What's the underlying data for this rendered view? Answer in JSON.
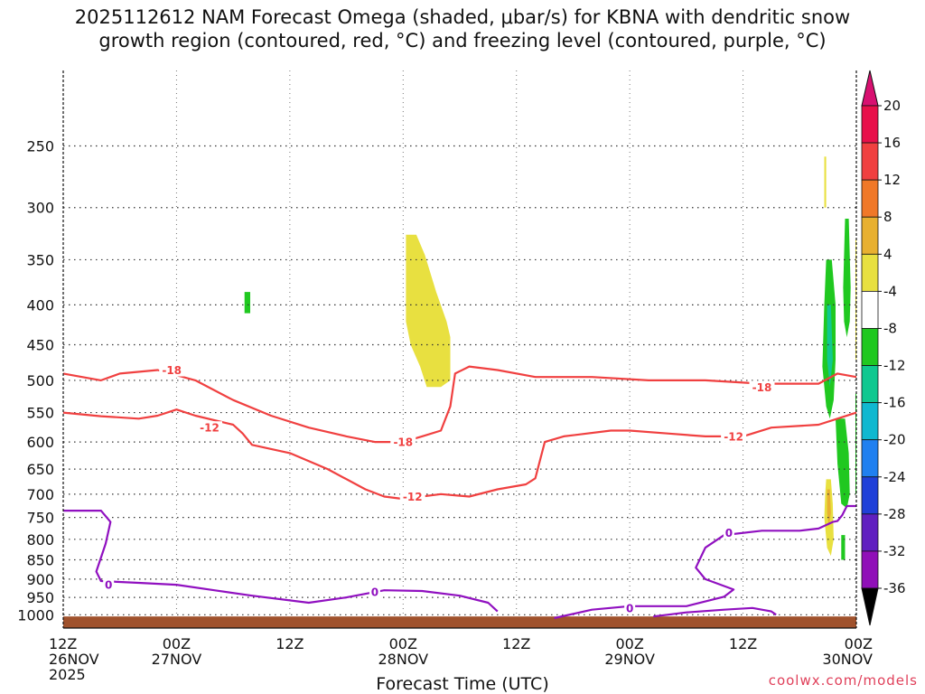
{
  "chart_data": {
    "type": "time-height section",
    "title_line1": "2025112612 NAM Forecast Omega (shaded, μbar/s) for KBNA with dendritic snow",
    "title_line2": "growth region (contoured, red, °C) and freezing level (contoured, purple, °C)",
    "xlabel": "Forecast Time (UTC)",
    "credit": "coolwx.com/models",
    "x_ticks": [
      {
        "hour": 0,
        "l1": "12Z",
        "l2": "26NOV",
        "l3": "2025"
      },
      {
        "hour": 12,
        "l1": "00Z",
        "l2": "27NOV",
        "l3": ""
      },
      {
        "hour": 24,
        "l1": "12Z",
        "l2": "",
        "l3": ""
      },
      {
        "hour": 36,
        "l1": "00Z",
        "l2": "28NOV",
        "l3": ""
      },
      {
        "hour": 48,
        "l1": "12Z",
        "l2": "",
        "l3": ""
      },
      {
        "hour": 60,
        "l1": "00Z",
        "l2": "29NOV",
        "l3": ""
      },
      {
        "hour": 72,
        "l1": "12Z",
        "l2": "",
        "l3": ""
      },
      {
        "hour": 84,
        "l1": "00Z",
        "l2": "30NOV",
        "l3": ""
      }
    ],
    "xlim": [
      0,
      84
    ],
    "ylim_hpa": [
      1040,
      200
    ],
    "y_ticks": [
      250,
      300,
      350,
      400,
      450,
      500,
      550,
      600,
      650,
      700,
      750,
      800,
      850,
      900,
      950,
      1000
    ],
    "colorbar": {
      "labels": [
        "20",
        "16",
        "12",
        "8",
        "4",
        "-4",
        "-8",
        "-12",
        "-16",
        "-20",
        "-24",
        "-28",
        "-32",
        "-36"
      ],
      "colors": [
        "#e8104a",
        "#f04040",
        "#f07828",
        "#e8b030",
        "#e8e040",
        "#ffffff",
        "#20c820",
        "#10c890",
        "#10b8d0",
        "#2080f0",
        "#2040d8",
        "#6020c0",
        "#9010b8",
        "#a8a8a8"
      ]
    },
    "contours": [
      {
        "name": "isotherm-minus18",
        "label": "-18",
        "color": "#f04040",
        "points": [
          [
            0,
            490
          ],
          [
            4,
            500
          ],
          [
            6,
            490
          ],
          [
            10,
            485
          ],
          [
            14,
            500
          ],
          [
            18,
            530
          ],
          [
            22,
            555
          ],
          [
            26,
            575
          ],
          [
            30,
            590
          ],
          [
            33,
            600
          ],
          [
            36,
            600
          ],
          [
            38,
            590
          ],
          [
            40,
            580
          ],
          [
            41,
            540
          ],
          [
            41.5,
            490
          ],
          [
            43,
            480
          ],
          [
            46,
            485
          ],
          [
            50,
            495
          ],
          [
            56,
            495
          ],
          [
            62,
            500
          ],
          [
            68,
            500
          ],
          [
            74,
            505
          ],
          [
            78,
            505
          ],
          [
            80,
            505
          ],
          [
            82,
            490
          ],
          [
            84,
            495
          ]
        ],
        "labels": [
          {
            "x": 11.5,
            "p": 485
          },
          {
            "x": 36,
            "p": 600
          },
          {
            "x": 74,
            "p": 510
          }
        ]
      },
      {
        "name": "isotherm-minus12",
        "label": "-12",
        "color": "#f04040",
        "points": [
          [
            0,
            550
          ],
          [
            4,
            556
          ],
          [
            8,
            560
          ],
          [
            10,
            555
          ],
          [
            12,
            545
          ],
          [
            14,
            555
          ],
          [
            18,
            570
          ],
          [
            19,
            585
          ],
          [
            20,
            605
          ],
          [
            24,
            620
          ],
          [
            28,
            650
          ],
          [
            32,
            690
          ],
          [
            34,
            705
          ],
          [
            36,
            710
          ],
          [
            40,
            700
          ],
          [
            43,
            705
          ],
          [
            46,
            690
          ],
          [
            49,
            680
          ],
          [
            50,
            668
          ],
          [
            51,
            600
          ],
          [
            53,
            590
          ],
          [
            58,
            580
          ],
          [
            60,
            580
          ],
          [
            64,
            585
          ],
          [
            68,
            590
          ],
          [
            72,
            590
          ],
          [
            75,
            575
          ],
          [
            80,
            570
          ],
          [
            82,
            560
          ],
          [
            84,
            550
          ]
        ],
        "labels": [
          {
            "x": 15.5,
            "p": 575
          },
          {
            "x": 37,
            "p": 705
          },
          {
            "x": 71,
            "p": 590
          }
        ]
      },
      {
        "name": "freezing-level",
        "label": "0",
        "color": "#9010c0",
        "points": [
          [
            0,
            735
          ],
          [
            4,
            735
          ],
          [
            5,
            760
          ],
          [
            4.5,
            810
          ],
          [
            3.5,
            880
          ],
          [
            4,
            905
          ],
          [
            8,
            910
          ],
          [
            12,
            915
          ],
          [
            16,
            930
          ],
          [
            20,
            945
          ],
          [
            26,
            965
          ],
          [
            30,
            950
          ],
          [
            34,
            930
          ],
          [
            38,
            932
          ],
          [
            42,
            945
          ],
          [
            45,
            965
          ],
          [
            46,
            990
          ]
        ],
        "labels": [
          {
            "x": 4.8,
            "p": 915
          },
          {
            "x": 33,
            "p": 935
          }
        ]
      },
      {
        "name": "freezing-level-east",
        "label": "0",
        "color": "#9010c0",
        "points": [
          [
            52,
            1010
          ],
          [
            56,
            985
          ],
          [
            60,
            975
          ],
          [
            66,
            975
          ],
          [
            70,
            948
          ],
          [
            71,
            928
          ],
          [
            68,
            900
          ],
          [
            67,
            870
          ],
          [
            68,
            820
          ],
          [
            70,
            790
          ],
          [
            74,
            780
          ],
          [
            78,
            780
          ],
          [
            80,
            775
          ],
          [
            81.5,
            760
          ],
          [
            82,
            758
          ],
          [
            82.5,
            745
          ],
          [
            83,
            725
          ],
          [
            84,
            725
          ]
        ],
        "labels": [
          {
            "x": 60,
            "p": 980
          },
          {
            "x": 70.5,
            "p": 785
          }
        ]
      },
      {
        "name": "freezing-level-east-low",
        "label": "0",
        "color": "#9010c0",
        "points": [
          [
            62.5,
            1005
          ],
          [
            64,
            1000
          ],
          [
            66,
            993
          ],
          [
            70,
            985
          ],
          [
            73,
            980
          ],
          [
            75,
            990
          ],
          [
            75.5,
            1000
          ]
        ],
        "labels": []
      }
    ],
    "shaded_regions": [
      {
        "name": "omega-shade-yellow-center",
        "value": "4-8",
        "color": "#e8e040",
        "points": [
          [
            36.3,
            325
          ],
          [
            37.4,
            325
          ],
          [
            38.3,
            345
          ],
          [
            39.5,
            385
          ],
          [
            40.6,
            420
          ],
          [
            41,
            440
          ],
          [
            41,
            500
          ],
          [
            40,
            510
          ],
          [
            38.5,
            510
          ],
          [
            37.8,
            480
          ],
          [
            36.8,
            450
          ],
          [
            36.3,
            420
          ]
        ]
      },
      {
        "name": "omega-shade-green-west",
        "value": "-4 to -8",
        "color": "#20c820",
        "points": [
          [
            19.2,
            385
          ],
          [
            19.8,
            385
          ],
          [
            19.8,
            410
          ],
          [
            19.2,
            410
          ]
        ]
      },
      {
        "name": "omega-shade-yellow-east-top",
        "value": "4-8",
        "color": "#e8e040",
        "points": [
          [
            80.6,
            258
          ],
          [
            80.8,
            258
          ],
          [
            80.8,
            300
          ],
          [
            80.6,
            300
          ]
        ]
      },
      {
        "name": "omega-shade-green-east-1",
        "value": "-4 to -8",
        "color": "#20c820",
        "points": [
          [
            80.8,
            350
          ],
          [
            81.4,
            350
          ],
          [
            81.8,
            400
          ],
          [
            81.8,
            470
          ],
          [
            81.6,
            530
          ],
          [
            81.2,
            560
          ],
          [
            80.8,
            540
          ],
          [
            80.4,
            480
          ],
          [
            80.6,
            400
          ]
        ]
      },
      {
        "name": "omega-shade-green-east-2",
        "value": "-4 to -8",
        "color": "#20c820",
        "points": [
          [
            82.8,
            310
          ],
          [
            83.2,
            310
          ],
          [
            83.4,
            380
          ],
          [
            83.3,
            420
          ],
          [
            83,
            440
          ],
          [
            82.7,
            420
          ],
          [
            82.6,
            380
          ]
        ]
      },
      {
        "name": "omega-shade-green-east-3",
        "value": "-4 to -8",
        "color": "#20c820",
        "points": [
          [
            81.8,
            560
          ],
          [
            82.8,
            560
          ],
          [
            83.2,
            620
          ],
          [
            83.3,
            700
          ],
          [
            83,
            730
          ],
          [
            82.4,
            720
          ],
          [
            82,
            640
          ]
        ]
      },
      {
        "name": "omega-shade-cyan-east",
        "value": "-8 to -12",
        "color": "#10c890",
        "points": [
          [
            80.9,
            400
          ],
          [
            81.3,
            400
          ],
          [
            81.5,
            470
          ],
          [
            81.2,
            510
          ],
          [
            80.9,
            470
          ]
        ]
      },
      {
        "name": "omega-shade-yellow-east-low",
        "value": "4-8",
        "color": "#e8e040",
        "points": [
          [
            80.8,
            670
          ],
          [
            81.3,
            670
          ],
          [
            81.5,
            720
          ],
          [
            81.6,
            800
          ],
          [
            81.3,
            840
          ],
          [
            80.9,
            820
          ],
          [
            80.6,
            750
          ],
          [
            80.7,
            700
          ]
        ]
      },
      {
        "name": "omega-shade-orange-east-low",
        "value": "8-12",
        "color": "#e8b030",
        "points": [
          [
            80.9,
            690
          ],
          [
            81.2,
            690
          ],
          [
            81.3,
            740
          ],
          [
            81.1,
            770
          ],
          [
            80.9,
            740
          ]
        ]
      },
      {
        "name": "omega-shade-green-east-4",
        "value": "-4 to -8",
        "color": "#20c820",
        "points": [
          [
            83.9,
            520
          ],
          [
            84,
            520
          ],
          [
            84,
            700
          ],
          [
            83.9,
            700
          ]
        ]
      },
      {
        "name": "omega-shade-green-east-5",
        "value": "-4 to -8",
        "color": "#20c820",
        "points": [
          [
            82.4,
            790
          ],
          [
            82.8,
            790
          ],
          [
            82.8,
            850
          ],
          [
            82.4,
            850
          ]
        ]
      },
      {
        "name": "omega-shade-yellow-east-edge",
        "value": "4-8",
        "color": "#e8e040",
        "points": [
          [
            83.9,
            330
          ],
          [
            84,
            330
          ],
          [
            84,
            470
          ],
          [
            83.9,
            470
          ]
        ]
      }
    ],
    "terrain": {
      "name": "ground",
      "color": "#a0522d",
      "surface_hpa": 1005
    }
  }
}
